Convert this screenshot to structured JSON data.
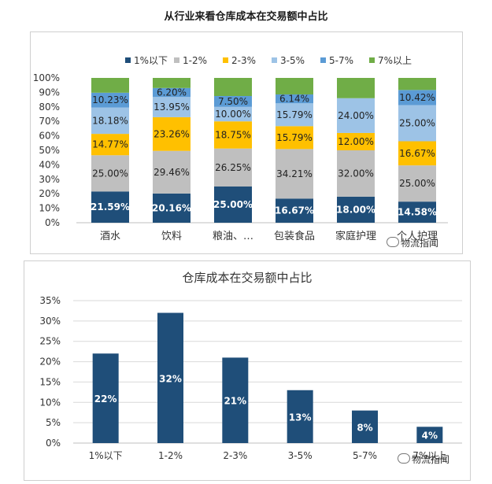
{
  "page_title": "从行业来看仓库成本在交易额中占比",
  "watermark": "物流指闻",
  "colors": {
    "dark_blue": "#1f4e79",
    "gray": "#bfbfbf",
    "yellow": "#ffc000",
    "light_blue": "#9dc3e6",
    "mid_blue": "#5b9bd5",
    "green": "#70ad47"
  },
  "chart_data": [
    {
      "type": "bar",
      "stacked": true,
      "categories": [
        "酒水",
        "饮料",
        "粮油、…",
        "包装食品",
        "家庭护理",
        "个人护理"
      ],
      "series": [
        {
          "name": "1%以下",
          "color": "#1f4e79",
          "values": [
            21.59,
            20.16,
            25.0,
            16.67,
            18.0,
            14.58
          ]
        },
        {
          "name": "1-2%",
          "color": "#bfbfbf",
          "values": [
            25.0,
            29.46,
            26.25,
            34.21,
            32.0,
            25.0
          ]
        },
        {
          "name": "2-3%",
          "color": "#ffc000",
          "values": [
            14.77,
            23.26,
            18.75,
            15.79,
            12.0,
            16.67
          ]
        },
        {
          "name": "3-5%",
          "color": "#9dc3e6",
          "values": [
            18.18,
            13.95,
            10.0,
            15.79,
            24.0,
            25.0
          ]
        },
        {
          "name": "5-7%",
          "color": "#5b9bd5",
          "values": [
            10.23,
            6.2,
            7.5,
            6.14,
            0,
            10.42
          ]
        },
        {
          "name": "7%以上",
          "color": "#70ad47",
          "values": [
            10.23,
            6.98,
            12.5,
            11.4,
            14.0,
            8.33
          ]
        }
      ],
      "data_labels": [
        [
          "21.59%",
          "25.00%",
          "14.77%",
          "18.18%",
          "10.23%",
          ""
        ],
        [
          "20.16%",
          "29.46%",
          "23.26%",
          "13.95%",
          "6.20%",
          ""
        ],
        [
          "25.00%",
          "26.25%",
          "18.75%",
          "10.00%",
          "7.50%",
          ""
        ],
        [
          "16.67%",
          "34.21%",
          "15.79%",
          "15.79%",
          "6.14%",
          ""
        ],
        [
          "18.00%",
          "32.00%",
          "12.00%",
          "24.00%",
          "",
          ""
        ],
        [
          "14.58%",
          "25.00%",
          "16.67%",
          "25.00%",
          "10.42%",
          ""
        ]
      ],
      "yticks": [
        "0%",
        "10%",
        "20%",
        "30%",
        "40%",
        "50%",
        "60%",
        "70%",
        "80%",
        "90%",
        "100%"
      ],
      "ylim": [
        0,
        100
      ],
      "legend_position": "top"
    },
    {
      "type": "bar",
      "title": "仓库成本在交易额中占比",
      "categories": [
        "1%以下",
        "1-2%",
        "2-3%",
        "3-5%",
        "5-7%",
        "7%以上"
      ],
      "values": [
        22,
        32,
        21,
        13,
        8,
        4
      ],
      "data_labels": [
        "22%",
        "32%",
        "21%",
        "13%",
        "8%",
        "4%"
      ],
      "color": "#1f4e79",
      "yticks": [
        "0%",
        "5%",
        "10%",
        "15%",
        "20%",
        "25%",
        "30%",
        "35%"
      ],
      "ylim": [
        0,
        35
      ],
      "grid": true
    }
  ]
}
